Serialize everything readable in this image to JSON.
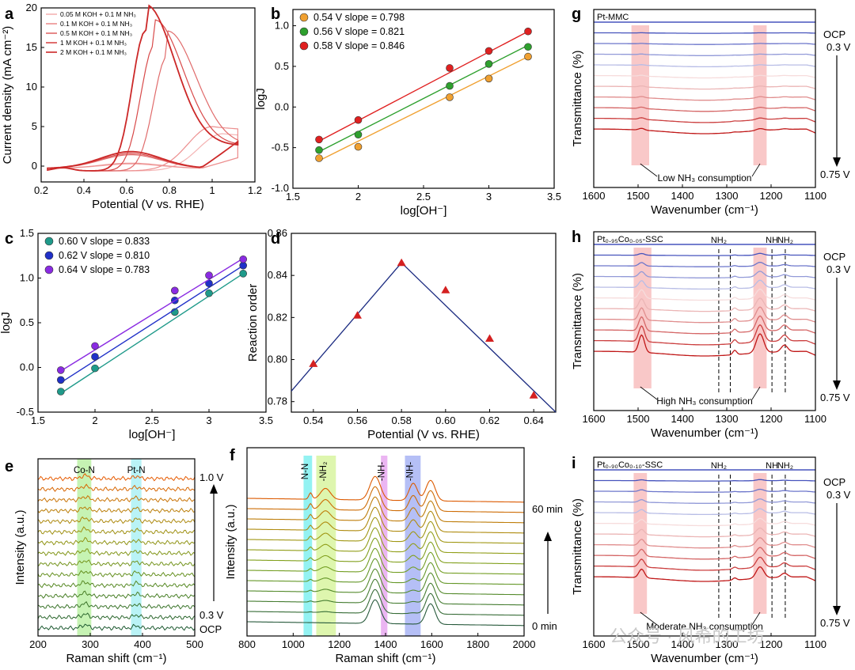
{
  "figure": {
    "watermark": "公众号 · 风希的工坊"
  },
  "chart_data": [
    {
      "panel": "a",
      "type": "line",
      "xlabel": "Potential (V vs. RHE)",
      "ylabel": "Current density (mA cm⁻²)",
      "xlim": [
        0.2,
        1.2
      ],
      "ylim": [
        -2,
        20
      ],
      "xticks": [
        0.2,
        0.4,
        0.6,
        0.8,
        1.0,
        1.2
      ],
      "yticks": [
        0,
        5,
        10,
        15,
        20
      ],
      "legend": "top-left",
      "series": [
        {
          "name": "0.05 M KOH + 0.1 M NH₃",
          "color": "#f4b3b3",
          "peak_x": 1.05,
          "peak_y": 4.7
        },
        {
          "name": "0.1 M KOH + 0.1 M NH₃",
          "color": "#ec8f8f",
          "peak_x": 1.0,
          "peak_y": 5.6
        },
        {
          "name": "0.5 M KOH + 0.1 M NH₃",
          "color": "#e06b6b",
          "peak_x": 0.79,
          "peak_y": 14.5
        },
        {
          "name": "1 M KOH + 0.1 M NH₃",
          "color": "#d84a4a",
          "peak_x": 0.73,
          "peak_y": 15.9
        },
        {
          "name": "2 M KOH + 0.1 M NH₃",
          "color": "#cc2828",
          "peak_x": 0.69,
          "peak_y": 17.8
        }
      ]
    },
    {
      "panel": "b",
      "type": "scatter",
      "xlabel": "log[OH⁻]",
      "ylabel": "logJ",
      "xlim": [
        1.5,
        3.5
      ],
      "ylim": [
        -1.0,
        1.2
      ],
      "xticks": [
        1.5,
        2.0,
        2.5,
        3.0,
        3.5
      ],
      "yticks": [
        -1.0,
        -0.5,
        0.0,
        0.5,
        1.0
      ],
      "legend": "top-left",
      "series": [
        {
          "name": "0.54 V slope = 0.798",
          "color": "#f0a030",
          "x": [
            1.7,
            2.0,
            2.7,
            3.0,
            3.3
          ],
          "y": [
            -0.63,
            -0.49,
            0.12,
            0.35,
            0.62
          ],
          "fit": [
            [
              1.7,
              -0.66
            ],
            [
              3.3,
              0.62
            ]
          ]
        },
        {
          "name": "0.56 V slope = 0.821",
          "color": "#2ea02e",
          "x": [
            1.7,
            2.0,
            2.7,
            3.0,
            3.3
          ],
          "y": [
            -0.53,
            -0.34,
            0.26,
            0.53,
            0.74
          ],
          "fit": [
            [
              1.7,
              -0.55
            ],
            [
              3.3,
              0.76
            ]
          ]
        },
        {
          "name": "0.58 V slope = 0.846",
          "color": "#e02020",
          "x": [
            1.7,
            2.0,
            2.7,
            3.0,
            3.3
          ],
          "y": [
            -0.4,
            -0.16,
            0.48,
            0.69,
            0.93
          ],
          "fit": [
            [
              1.7,
              -0.42
            ],
            [
              3.3,
              0.93
            ]
          ]
        }
      ]
    },
    {
      "panel": "c",
      "type": "scatter",
      "xlabel": "log[OH⁻]",
      "ylabel": "logJ",
      "xlim": [
        1.5,
        3.5
      ],
      "ylim": [
        -0.5,
        1.5
      ],
      "xticks": [
        1.5,
        2.0,
        2.5,
        3.0,
        3.5
      ],
      "yticks": [
        -0.5,
        0.0,
        0.5,
        1.0,
        1.5
      ],
      "legend": "top-left",
      "series": [
        {
          "name": "0.60 V slope = 0.833",
          "color": "#1f9a8a",
          "x": [
            1.7,
            2.0,
            2.7,
            3.0,
            3.3
          ],
          "y": [
            -0.27,
            -0.01,
            0.62,
            0.83,
            1.05
          ],
          "fit": [
            [
              1.7,
              -0.29
            ],
            [
              3.3,
              1.05
            ]
          ]
        },
        {
          "name": "0.62 V slope = 0.810",
          "color": "#2030c8",
          "x": [
            1.7,
            2.0,
            2.7,
            3.0,
            3.3
          ],
          "y": [
            -0.14,
            0.12,
            0.75,
            0.94,
            1.14
          ],
          "fit": [
            [
              1.7,
              -0.17
            ],
            [
              3.3,
              1.14
            ]
          ]
        },
        {
          "name": "0.64 V slope = 0.783",
          "color": "#8a2be2",
          "x": [
            1.7,
            2.0,
            2.7,
            3.0,
            3.3
          ],
          "y": [
            -0.03,
            0.24,
            0.86,
            1.03,
            1.21
          ],
          "fit": [
            [
              1.7,
              -0.04
            ],
            [
              3.3,
              1.22
            ]
          ]
        }
      ]
    },
    {
      "panel": "d",
      "type": "scatter",
      "xlabel": "Potential (V vs. RHE)",
      "ylabel": "Reaction order",
      "xlim": [
        0.53,
        0.65
      ],
      "ylim": [
        0.775,
        0.86
      ],
      "xticks": [
        0.54,
        0.56,
        0.58,
        0.6,
        0.62,
        0.64
      ],
      "yticks": [
        0.78,
        0.8,
        0.82,
        0.84,
        0.86
      ],
      "series": [
        {
          "name": "",
          "color": "#d42020",
          "x": [
            0.54,
            0.56,
            0.58,
            0.6,
            0.62,
            0.64
          ],
          "y": [
            0.798,
            0.821,
            0.846,
            0.833,
            0.81,
            0.783
          ]
        }
      ],
      "fit_lines": [
        [
          [
            0.53,
            0.785
          ],
          [
            0.58,
            0.846
          ]
        ],
        [
          [
            0.58,
            0.846
          ],
          [
            0.65,
            0.775
          ]
        ]
      ]
    },
    {
      "panel": "e",
      "type": "line",
      "xlabel": "Raman shift (cm⁻¹)",
      "ylabel": "Intensity (a.u.)",
      "xlim": [
        200,
        500
      ],
      "xticks": [
        200,
        300,
        400,
        500
      ],
      "bands": [
        {
          "label": "Co-N",
          "from": 275,
          "to": 302,
          "color": "#b8f0a0"
        },
        {
          "label": "Pt-N",
          "from": 378,
          "to": 398,
          "color": "#a8f0f4"
        }
      ],
      "annotations": [
        "1.0 V",
        "0.3 V",
        "OCP"
      ],
      "trace_count": 15
    },
    {
      "panel": "f",
      "type": "line",
      "xlabel": "Raman shift (cm⁻¹)",
      "ylabel": "Intensity (a.u.)",
      "xlim": [
        800,
        2000
      ],
      "xticks": [
        800,
        1000,
        1200,
        1400,
        1600,
        1800,
        2000
      ],
      "bands": [
        {
          "label": "N-N",
          "from": 1045,
          "to": 1082,
          "color": "#80f0f0"
        },
        {
          "label": "-NH₂",
          "from": 1100,
          "to": 1185,
          "color": "#d8f4a0"
        },
        {
          "label": "-NH-",
          "from": 1380,
          "to": 1408,
          "color": "#e8a8f0"
        },
        {
          "label": "-NH-",
          "from": 1484,
          "to": 1552,
          "color": "#a8b4f4"
        }
      ],
      "peaks": [
        1075,
        1140,
        1355,
        1520,
        1595
      ],
      "annotations": [
        "60 min",
        "0 min"
      ],
      "trace_count": 13
    },
    {
      "panel": "g",
      "type": "line",
      "title": "Pt-MMC",
      "xlabel": "Wavenumber (cm⁻¹)",
      "ylabel": "Transmittance (%)",
      "xlim": [
        1600,
        1100
      ],
      "xticks": [
        1600,
        1500,
        1400,
        1300,
        1200,
        1100
      ],
      "bands": [
        {
          "from": 1515,
          "to": 1475
        },
        {
          "from": 1240,
          "to": 1210
        }
      ],
      "dashed_lines": [],
      "annotations": [
        "Low NH₃ consumption"
      ],
      "labels_right": [
        "OCP",
        "0.3 V",
        "0.75 V"
      ],
      "dip_depths": [
        0.1,
        0.1
      ],
      "trace_count": 11
    },
    {
      "panel": "h",
      "type": "line",
      "title": "Pt₀.₉₅Co₀.₀₅-SSC",
      "xlabel": "Wavenumber (cm⁻¹)",
      "ylabel": "Transmittance (%)",
      "xlim": [
        1600,
        1100
      ],
      "xticks": [
        1600,
        1500,
        1400,
        1300,
        1200,
        1100
      ],
      "bands": [
        {
          "from": 1510,
          "to": 1470
        },
        {
          "from": 1240,
          "to": 1210
        }
      ],
      "dashed_lines": [
        {
          "x": 1318,
          "label": "NH₂"
        },
        {
          "x": 1292,
          "label": ""
        },
        {
          "x": 1198,
          "label": "NH"
        },
        {
          "x": 1168,
          "label": "NH₂"
        }
      ],
      "annotations": [
        "High NH₃ consumption"
      ],
      "labels_right": [
        "OCP",
        "0.3 V",
        "0.75 V"
      ],
      "dip_depths": [
        1.0,
        1.0
      ],
      "trace_count": 11
    },
    {
      "panel": "i",
      "type": "line",
      "title": "Pt₀.₉₀Co₀.₁₀-SSC",
      "xlabel": "Wavenumber (cm⁻¹)",
      "ylabel": "Transmittance (%)",
      "xlim": [
        1600,
        1100
      ],
      "xticks": [
        1600,
        1500,
        1400,
        1300,
        1200,
        1100
      ],
      "bands": [
        {
          "from": 1510,
          "to": 1480
        },
        {
          "from": 1240,
          "to": 1210
        }
      ],
      "dashed_lines": [
        {
          "x": 1318,
          "label": "NH₂"
        },
        {
          "x": 1292,
          "label": ""
        },
        {
          "x": 1198,
          "label": "NH"
        },
        {
          "x": 1168,
          "label": "NH₂"
        }
      ],
      "annotations": [
        "Moderate NH₃ consumption"
      ],
      "labels_right": [
        "OCP",
        "0.3 V",
        "0.75 V"
      ],
      "dip_depths": [
        0.5,
        0.6
      ],
      "trace_count": 11
    }
  ]
}
